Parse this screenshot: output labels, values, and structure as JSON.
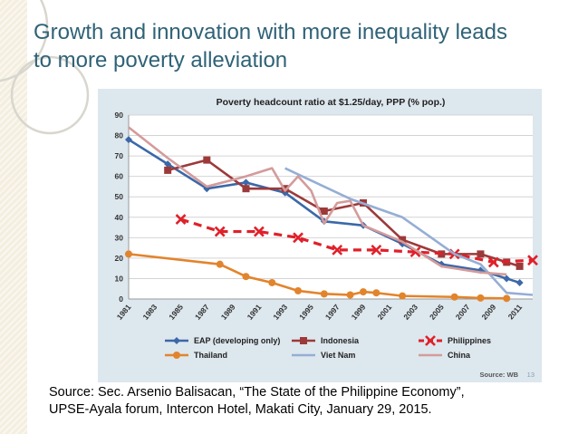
{
  "slide": {
    "title_line1": "Growth and innovation with more inequality leads",
    "title_line2": "to more poverty alleviation",
    "source_line1": "Source: Sec. Arsenio Balisacan, “The State of the Philippine Economy”,",
    "source_line2": "UPSE-Ayala forum, Intercon Hotel, Makati City, January 29, 2015.",
    "title_color": "#2f6277"
  },
  "chart_data": {
    "type": "line",
    "title": "Poverty headcount ratio at $1.25/day, PPP (% pop.)",
    "source": "Source: WB",
    "page_number": "13",
    "xlabel": "",
    "ylabel": "",
    "ylim": [
      0,
      90
    ],
    "yticks": [
      0,
      10,
      20,
      30,
      40,
      50,
      60,
      70,
      80,
      90
    ],
    "xlim": [
      1981,
      2012
    ],
    "xticks": [
      1981,
      1983,
      1985,
      1987,
      1989,
      1991,
      1993,
      1995,
      1997,
      1999,
      2001,
      2003,
      2005,
      2007,
      2009,
      2011
    ],
    "grid": true,
    "legend_position": "bottom",
    "series": [
      {
        "name": "EAP (developing only)",
        "color": "#3b68a8",
        "marker": "diamond",
        "dashed": false,
        "points": [
          [
            1981,
            78
          ],
          [
            1984,
            66
          ],
          [
            1987,
            54
          ],
          [
            1990,
            57
          ],
          [
            1993,
            52
          ],
          [
            1996,
            38
          ],
          [
            1999,
            36
          ],
          [
            2002,
            27
          ],
          [
            2005,
            17
          ],
          [
            2008,
            14
          ],
          [
            2010,
            10
          ],
          [
            2011,
            8
          ]
        ]
      },
      {
        "name": "Indonesia",
        "color": "#9c3a3a",
        "marker": "square",
        "dashed": false,
        "points": [
          [
            1984,
            63
          ],
          [
            1987,
            68
          ],
          [
            1990,
            54
          ],
          [
            1993,
            54
          ],
          [
            1996,
            43
          ],
          [
            1999,
            47
          ],
          [
            2002,
            29
          ],
          [
            2005,
            22
          ],
          [
            2008,
            22
          ],
          [
            2010,
            18
          ],
          [
            2011,
            16
          ]
        ]
      },
      {
        "name": "Philippines",
        "color": "#e0202a",
        "marker": "x",
        "dashed": true,
        "points": [
          [
            1985,
            39
          ],
          [
            1988,
            33
          ],
          [
            1991,
            33
          ],
          [
            1994,
            30
          ],
          [
            1997,
            24
          ],
          [
            2000,
            24
          ],
          [
            2003,
            23
          ],
          [
            2006,
            22
          ],
          [
            2009,
            18
          ],
          [
            2012,
            19
          ]
        ]
      },
      {
        "name": "Thailand",
        "color": "#e2842c",
        "marker": "circle",
        "dashed": false,
        "points": [
          [
            1981,
            22
          ],
          [
            1988,
            17
          ],
          [
            1990,
            11
          ],
          [
            1992,
            8
          ],
          [
            1994,
            4
          ],
          [
            1996,
            2.5
          ],
          [
            1998,
            2
          ],
          [
            1999,
            3.5
          ],
          [
            2000,
            3
          ],
          [
            2002,
            1.5
          ],
          [
            2006,
            1
          ],
          [
            2008,
            0.5
          ],
          [
            2010,
            0.3
          ]
        ]
      },
      {
        "name": "Viet Nam",
        "color": "#95aed4",
        "marker": "none",
        "dashed": false,
        "points": [
          [
            1993,
            64
          ],
          [
            1998,
            49
          ],
          [
            2002,
            40
          ],
          [
            2004,
            31
          ],
          [
            2006,
            22
          ],
          [
            2008,
            17
          ],
          [
            2010,
            3
          ],
          [
            2012,
            2
          ]
        ]
      },
      {
        "name": "China",
        "color": "#d49b9b",
        "marker": "none",
        "dashed": false,
        "points": [
          [
            1981,
            84
          ],
          [
            1984,
            69
          ],
          [
            1987,
            55
          ],
          [
            1990,
            60
          ],
          [
            1992,
            64
          ],
          [
            1993,
            53
          ],
          [
            1994,
            60
          ],
          [
            1995,
            53
          ],
          [
            1996,
            37
          ],
          [
            1997,
            47
          ],
          [
            1998,
            48
          ],
          [
            1999,
            36
          ],
          [
            2002,
            28
          ],
          [
            2005,
            16
          ],
          [
            2008,
            13
          ],
          [
            2010,
            12
          ]
        ]
      }
    ]
  }
}
